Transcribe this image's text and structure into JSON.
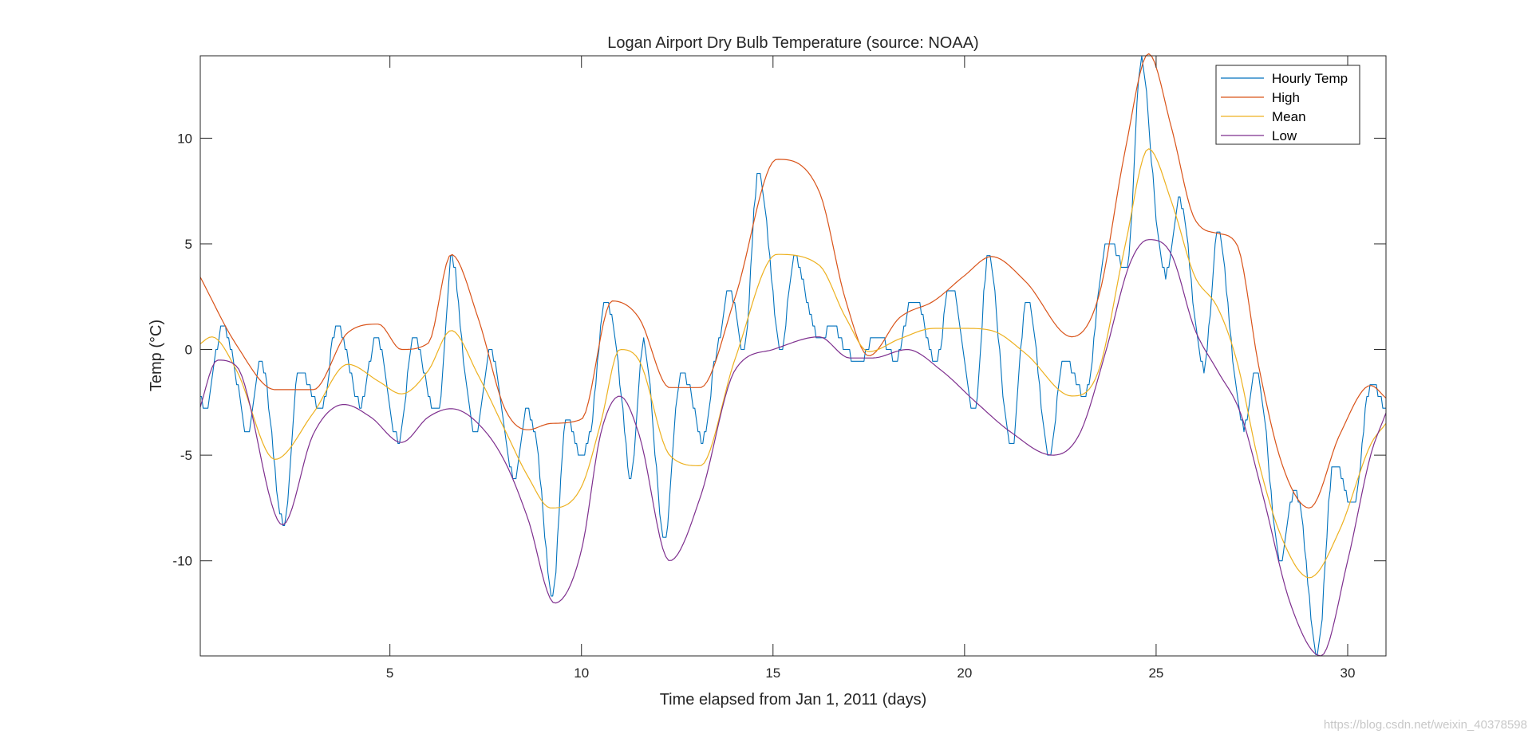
{
  "chart_data": {
    "type": "line",
    "title": "Logan Airport Dry Bulb Temperature (source: NOAA)",
    "xlabel": "Time elapsed from Jan 1, 2011 (days)",
    "ylabel": "Temp (°C)",
    "xlim": [
      0.05,
      31
    ],
    "ylim": [
      -14.5,
      13.9
    ],
    "xticks": [
      5,
      10,
      15,
      20,
      25,
      30
    ],
    "yticks": [
      -10,
      -5,
      0,
      5,
      10
    ],
    "legend_position": "top-right",
    "series": [
      {
        "name": "Hourly Temp",
        "color": "#0072BD",
        "kind": "hourly",
        "daily_low_hour": 5.5,
        "daily_high_hour": 15,
        "x": [
          0.2,
          0.7,
          1.6,
          2.3,
          3.1,
          3.6,
          4.1,
          4.5,
          5.0,
          5.6,
          6.1,
          6.6,
          7.0,
          7.6,
          8.2,
          8.7,
          9.3,
          9.8,
          10.6,
          11.0,
          11.6,
          12.1,
          12.6,
          13.1,
          13.6,
          14.1,
          14.6,
          15.1,
          15.6,
          16.1,
          16.6,
          17.1,
          17.6,
          18.1,
          18.6,
          19.1,
          19.6,
          20.1,
          20.6,
          21.1,
          21.6,
          22.1,
          22.6,
          23.1,
          23.6,
          24.1,
          24.6,
          25.1,
          25.6,
          26.1,
          26.6,
          27.1,
          27.6,
          28.1,
          28.6,
          29.1,
          29.6,
          30.1,
          30.6,
          31.0
        ],
        "lows": [
          -2.8,
          -1.5,
          -6.0,
          -8.3,
          -3.0,
          -2.5,
          -2.5,
          -3.0,
          -4.3,
          -4.0,
          -3.0,
          -2.8,
          -3.5,
          -4.5,
          -6.0,
          -7.0,
          -11.8,
          -8.0,
          -2.0,
          -3.0,
          -9.4,
          -9.4,
          -4.5,
          -4.5,
          -1.0,
          -0.2,
          0.1,
          0.0,
          0.1,
          0.5,
          0.0,
          -0.5,
          -0.6,
          -0.5,
          0.0,
          -0.3,
          -1.5,
          -2.7,
          -3.8,
          -4.5,
          -4.7,
          -5.0,
          -4.3,
          -2.5,
          1.0,
          3.5,
          5.0,
          4.0,
          2.0,
          -0.5,
          -1.5,
          -2.6,
          -6.5,
          -9.5,
          -11.0,
          -14.5,
          -12.0,
          -8.0,
          -4.0,
          -3.0
        ],
        "highs": [
          0.5,
          1.0,
          -0.5,
          -1.5,
          0.5,
          1.2,
          1.2,
          0.5,
          0.5,
          0.5,
          0.6,
          4.4,
          1.5,
          0.0,
          -0.5,
          -3.2,
          -3.3,
          -3.2,
          2.2,
          2.0,
          0.5,
          -1.0,
          -1.2,
          -0.5,
          0.6,
          7.8,
          8.3,
          8.3,
          4.5,
          3.2,
          1.2,
          0.0,
          0.6,
          1.7,
          2.3,
          3.0,
          3.0,
          3.4,
          4.4,
          3.0,
          2.4,
          2.7,
          -0.5,
          1.0,
          4.3,
          8.4,
          13.8,
          9.5,
          7.1,
          5.6,
          5.6,
          2.7,
          -1.0,
          -2.5,
          -6.8,
          -6.8,
          -5.5,
          -3.0,
          -1.7,
          -2.0
        ]
      },
      {
        "name": "High",
        "color": "#D95319",
        "kind": "smooth",
        "x": [
          0.0,
          1.0,
          2.0,
          3.0,
          3.9,
          4.7,
          5.3,
          6.0,
          6.6,
          7.3,
          8.0,
          8.6,
          9.2,
          10.0,
          10.8,
          11.5,
          12.3,
          13.1,
          14.0,
          15.1,
          16.2,
          16.9,
          17.5,
          18.3,
          19.2,
          20.0,
          20.7,
          21.6,
          22.8,
          23.5,
          24.2,
          24.8,
          25.4,
          26.0,
          26.6,
          27.1,
          27.7,
          28.3,
          29.0,
          29.8,
          30.6,
          31.0
        ],
        "y": [
          3.6,
          0.2,
          -1.9,
          -1.9,
          0.8,
          1.2,
          0.0,
          0.3,
          4.5,
          1.5,
          -2.8,
          -3.8,
          -3.5,
          -3.3,
          2.3,
          1.5,
          -1.8,
          -1.8,
          2.4,
          9.0,
          7.5,
          2.3,
          -0.3,
          1.5,
          2.3,
          3.5,
          4.4,
          3.2,
          0.6,
          2.5,
          9.5,
          14.0,
          10.5,
          6.2,
          5.5,
          5.0,
          -1.0,
          -5.5,
          -7.5,
          -4.0,
          -1.7,
          -2.3
        ]
      },
      {
        "name": "Mean",
        "color": "#EDB120",
        "kind": "smooth",
        "x": [
          0.0,
          0.35,
          1.0,
          2.0,
          3.0,
          3.9,
          4.7,
          5.3,
          6.0,
          6.6,
          7.3,
          8.0,
          8.6,
          9.2,
          10.0,
          10.5,
          11.0,
          11.5,
          12.3,
          13.1,
          14.0,
          15.1,
          16.2,
          16.9,
          17.5,
          18.3,
          19.2,
          20.0,
          20.7,
          21.6,
          22.8,
          23.5,
          24.2,
          24.8,
          25.4,
          26.0,
          26.6,
          27.1,
          27.7,
          28.3,
          29.0,
          29.8,
          30.6,
          31.0
        ],
        "y": [
          0.2,
          0.6,
          -1.0,
          -5.2,
          -3.0,
          -0.7,
          -1.5,
          -2.1,
          -1.0,
          0.9,
          -1.2,
          -3.8,
          -6.0,
          -7.5,
          -6.5,
          -3.5,
          0.0,
          -0.5,
          -5.0,
          -5.5,
          -0.5,
          4.5,
          4.0,
          1.5,
          -0.1,
          0.5,
          1.0,
          1.0,
          0.9,
          -0.2,
          -2.2,
          -1.0,
          5.0,
          9.5,
          7.0,
          3.5,
          2.0,
          -0.5,
          -5.5,
          -9.0,
          -10.8,
          -8.5,
          -4.5,
          -3.5
        ]
      },
      {
        "name": "Low",
        "color": "#7E2F8E",
        "kind": "smooth",
        "x": [
          0.0,
          0.5,
          1.0,
          2.2,
          3.0,
          3.8,
          4.5,
          5.3,
          6.0,
          6.6,
          7.3,
          8.0,
          8.6,
          9.3,
          10.0,
          10.5,
          11.0,
          11.5,
          12.3,
          13.1,
          14.0,
          15.0,
          16.2,
          17.0,
          17.6,
          18.5,
          19.4,
          20.3,
          21.2,
          22.3,
          23.0,
          23.7,
          24.3,
          24.8,
          25.4,
          26.0,
          26.6,
          27.2,
          27.8,
          28.5,
          29.3,
          30.0,
          30.6,
          31.0
        ],
        "y": [
          -3.0,
          -0.5,
          -0.8,
          -8.3,
          -4.0,
          -2.6,
          -3.2,
          -4.4,
          -3.2,
          -2.8,
          -3.5,
          -5.3,
          -8.0,
          -12.0,
          -9.5,
          -4.0,
          -2.2,
          -4.0,
          -10.0,
          -7.0,
          -1.0,
          0.0,
          0.6,
          -0.4,
          -0.4,
          0.0,
          -1.0,
          -2.5,
          -3.9,
          -5.0,
          -4.0,
          0.0,
          4.0,
          5.2,
          4.5,
          1.0,
          -1.0,
          -3.0,
          -7.0,
          -12.0,
          -14.5,
          -10.0,
          -5.0,
          -3.0
        ]
      }
    ]
  },
  "watermark": "https://blog.csdn.net/weixin_40378598"
}
